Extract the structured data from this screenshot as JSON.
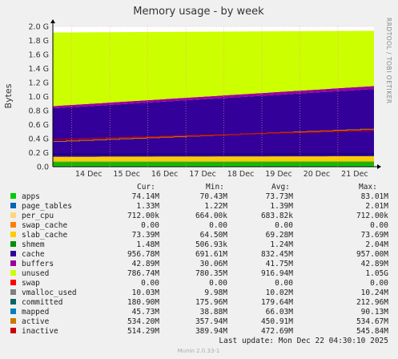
{
  "chart_data": {
    "type": "area",
    "title": "Memory usage - by week",
    "ylabel": "Bytes",
    "side_label": "RRDTOOL / TOBI OETIKER",
    "ylim": [
      0,
      2.0
    ],
    "y_ticks": [
      "0.0",
      "0.2 G",
      "0.4 G",
      "0.6 G",
      "0.8 G",
      "1.0 G",
      "1.2 G",
      "1.4 G",
      "1.6 G",
      "1.8 G",
      "2.0 G"
    ],
    "y_tick_values": [
      0,
      0.2,
      0.4,
      0.6,
      0.8,
      1.0,
      1.2,
      1.4,
      1.6,
      1.8,
      2.0
    ],
    "x_ticks": [
      "14 Dec",
      "15 Dec",
      "16 Dec",
      "17 Dec",
      "18 Dec",
      "19 Dec",
      "20 Dec",
      "21 Dec"
    ],
    "x_range_days": [
      13.5,
      21.95
    ],
    "x_tick_days": [
      14,
      15,
      16,
      17,
      18,
      19,
      20,
      21
    ],
    "stack_series": [
      {
        "name": "apps",
        "color": "#00cc00",
        "start": 0.073,
        "end": 0.074
      },
      {
        "name": "page_tables",
        "color": "#0066b3",
        "start": 0.0013,
        "end": 0.0013
      },
      {
        "name": "per_cpu",
        "color": "#ffd680",
        "start": 0.0007,
        "end": 0.0007
      },
      {
        "name": "swap_cache",
        "color": "#ff8000",
        "start": 0.0,
        "end": 0.0
      },
      {
        "name": "slab_cache",
        "color": "#ffcc00",
        "start": 0.066,
        "end": 0.073
      },
      {
        "name": "shmem",
        "color": "#330099",
        "start": 0.0015,
        "end": 0.0015
      },
      {
        "name": "cache",
        "color": "#330099",
        "start": 0.69,
        "end": 0.957
      },
      {
        "name": "buffers",
        "color": "#990099",
        "start": 0.031,
        "end": 0.043
      },
      {
        "name": "unused",
        "color": "#ccff00",
        "start": 1.05,
        "end": 0.787
      }
    ],
    "line_series": [
      {
        "name": "committed",
        "color": "#000066",
        "start": 0.176,
        "end": 0.181
      },
      {
        "name": "mapped",
        "color": "#996600",
        "start": 0.04,
        "end": 0.046
      },
      {
        "name": "active",
        "color": "#cc7700",
        "start": 0.36,
        "end": 0.534
      },
      {
        "name": "inactive",
        "color": "#cc0000",
        "start": 0.39,
        "end": 0.514
      }
    ],
    "columns": [
      "Cur:",
      "Min:",
      "Avg:",
      "Max:"
    ],
    "legend": [
      {
        "name": "apps",
        "color": "#00cc00",
        "cur": "74.14M",
        "min": "70.43M",
        "avg": "73.73M",
        "max": "83.01M"
      },
      {
        "name": "page_tables",
        "color": "#0066b3",
        "cur": "1.33M",
        "min": "1.22M",
        "avg": "1.39M",
        "max": "2.01M"
      },
      {
        "name": "per_cpu",
        "color": "#ffd680",
        "cur": "712.00k",
        "min": "664.00k",
        "avg": "683.82k",
        "max": "712.00k"
      },
      {
        "name": "swap_cache",
        "color": "#ff8000",
        "cur": "0.00",
        "min": "0.00",
        "avg": "0.00",
        "max": "0.00"
      },
      {
        "name": "slab_cache",
        "color": "#ffcc00",
        "cur": "73.39M",
        "min": "64.50M",
        "avg": "69.28M",
        "max": "73.69M"
      },
      {
        "name": "shmem",
        "color": "#008f00",
        "cur": "1.48M",
        "min": "506.93k",
        "avg": "1.24M",
        "max": "2.04M"
      },
      {
        "name": "cache",
        "color": "#330099",
        "cur": "956.78M",
        "min": "691.61M",
        "avg": "832.45M",
        "max": "957.00M"
      },
      {
        "name": "buffers",
        "color": "#990099",
        "cur": "42.89M",
        "min": "30.06M",
        "avg": "41.75M",
        "max": "42.89M"
      },
      {
        "name": "unused",
        "color": "#ccff00",
        "cur": "786.74M",
        "min": "780.35M",
        "avg": "916.94M",
        "max": "1.05G"
      },
      {
        "name": "swap",
        "color": "#ff0000",
        "cur": "0.00",
        "min": "0.00",
        "avg": "0.00",
        "max": "0.00"
      },
      {
        "name": "vmalloc_used",
        "color": "#808080",
        "cur": "10.03M",
        "min": "9.98M",
        "avg": "10.02M",
        "max": "10.24M"
      },
      {
        "name": "committed",
        "color": "#006666",
        "cur": "180.90M",
        "min": "175.96M",
        "avg": "179.64M",
        "max": "212.96M"
      },
      {
        "name": "mapped",
        "color": "#0080c0",
        "cur": "45.73M",
        "min": "38.88M",
        "avg": "66.03M",
        "max": "90.13M"
      },
      {
        "name": "active",
        "color": "#cc7700",
        "cur": "534.20M",
        "min": "357.94M",
        "avg": "450.91M",
        "max": "534.67M"
      },
      {
        "name": "inactive",
        "color": "#cc0000",
        "cur": "514.29M",
        "min": "389.94M",
        "avg": "472.69M",
        "max": "545.84M"
      }
    ],
    "last_update": "Last update:  Mon Dec 22 04:30:10 2025",
    "footer": "Munin 2.0.33-1"
  }
}
